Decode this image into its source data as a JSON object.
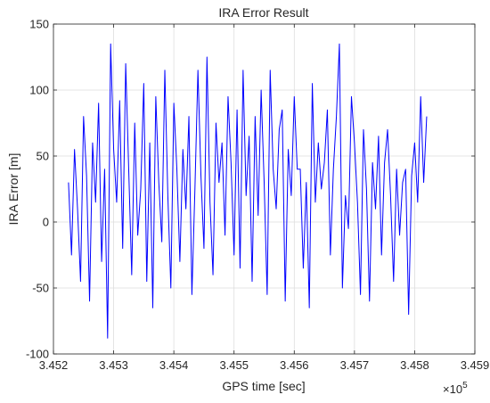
{
  "chart_data": {
    "type": "line",
    "title": "IRA Error Result",
    "xlabel": "GPS time [sec]",
    "ylabel": "IRA Error [m]",
    "xlim": [
      345200,
      345900
    ],
    "ylim": [
      -100,
      150
    ],
    "x_tick_labels": [
      "3.452",
      "3.453",
      "3.454",
      "3.455",
      "3.456",
      "3.457",
      "3.458",
      "3.459"
    ],
    "x_ticks": [
      345200,
      345300,
      345400,
      345500,
      345600,
      345700,
      345800,
      345900
    ],
    "y_tick_labels": [
      "-100",
      "-50",
      "0",
      "50",
      "100",
      "150"
    ],
    "y_ticks": [
      -100,
      -50,
      0,
      50,
      100,
      150
    ],
    "x_exponent_base": "×10",
    "x_exponent_power": "5",
    "grid": true,
    "series": [
      {
        "color": "#0000ff",
        "x": [
          345225,
          345230,
          345235,
          345240,
          345245,
          345250,
          345255,
          345260,
          345265,
          345270,
          345275,
          345280,
          345285,
          345290,
          345295,
          345300,
          345305,
          345310,
          345315,
          345320,
          345325,
          345330,
          345335,
          345340,
          345345,
          345350,
          345355,
          345360,
          345365,
          345370,
          345375,
          345380,
          345385,
          345390,
          345395,
          345400,
          345405,
          345410,
          345415,
          345420,
          345425,
          345430,
          345435,
          345440,
          345445,
          345450,
          345455,
          345460,
          345465,
          345470,
          345475,
          345480,
          345485,
          345490,
          345495,
          345500,
          345505,
          345510,
          345515,
          345520,
          345525,
          345530,
          345535,
          345540,
          345545,
          345550,
          345555,
          345560,
          345565,
          345570,
          345575,
          345580,
          345585,
          345590,
          345595,
          345600,
          345605,
          345610,
          345615,
          345620,
          345625,
          345630,
          345635,
          345640,
          345645,
          345650,
          345655,
          345660,
          345665,
          345670,
          345675,
          345680,
          345685,
          345690,
          345695,
          345700,
          345705,
          345710,
          345715,
          345720,
          345725,
          345730,
          345735,
          345740,
          345745,
          345750,
          345755,
          345760,
          345765,
          345770,
          345775,
          345780,
          345785,
          345790,
          345795,
          345800,
          345805,
          345810,
          345815,
          345820
        ],
        "y": [
          30,
          -25,
          55,
          10,
          -45,
          80,
          35,
          -60,
          60,
          15,
          90,
          -30,
          40,
          -88,
          135,
          55,
          15,
          92,
          -20,
          120,
          40,
          -40,
          75,
          -10,
          25,
          105,
          -45,
          60,
          -65,
          95,
          30,
          -15,
          115,
          20,
          -50,
          90,
          40,
          -30,
          55,
          10,
          80,
          -55,
          25,
          115,
          35,
          -20,
          125,
          15,
          -40,
          75,
          30,
          60,
          -10,
          95,
          45,
          -25,
          85,
          -35,
          115,
          20,
          65,
          -45,
          80,
          5,
          100,
          30,
          -55,
          115,
          40,
          10,
          70,
          85,
          -60,
          55,
          20,
          95,
          40,
          40,
          -35,
          30,
          -65,
          105,
          15,
          60,
          25,
          45,
          85,
          -25,
          40,
          80,
          135,
          -50,
          20,
          -5,
          95,
          60,
          15,
          -55,
          70,
          25,
          -60,
          45,
          10,
          65,
          -25,
          45,
          70,
          20,
          -45,
          40,
          -10,
          30,
          40,
          -70,
          35,
          60,
          15,
          95,
          30,
          80
        ]
      }
    ]
  }
}
